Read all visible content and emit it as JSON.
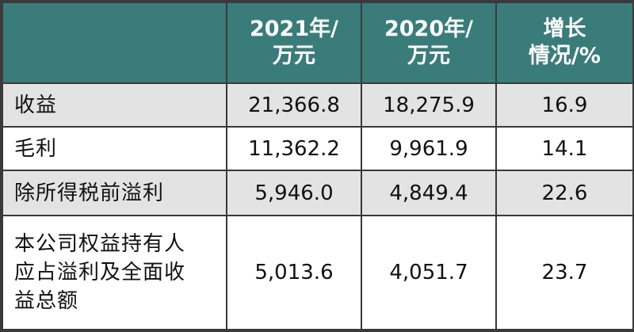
{
  "table": {
    "header": {
      "col0": "",
      "col1": [
        "2021年/",
        "万元"
      ],
      "col2": [
        "2020年/",
        "万元"
      ],
      "col3": [
        "增长",
        "情况/%"
      ]
    },
    "rows": [
      {
        "label": "收益",
        "v2021": "21,366.8",
        "v2020": "18,275.9",
        "growth": "16.9"
      },
      {
        "label": "毛利",
        "v2021": "11,362.2",
        "v2020": "9,961.9",
        "growth": "14.1"
      },
      {
        "label": "除所得税前溢利",
        "v2021": "5,946.0",
        "v2020": "4,849.4",
        "growth": "22.6"
      },
      {
        "label_lines": [
          "本公司权益持有人",
          "应占溢利及全面收",
          "益总额"
        ],
        "v2021": "5,013.6",
        "v2020": "4,051.7",
        "growth": "23.7"
      }
    ]
  },
  "colors": {
    "header_bg": "#3a7c7a",
    "header_text": "#ffffff",
    "row_alt_bg": "#e3e3e3",
    "border": "#3a3a3a"
  }
}
